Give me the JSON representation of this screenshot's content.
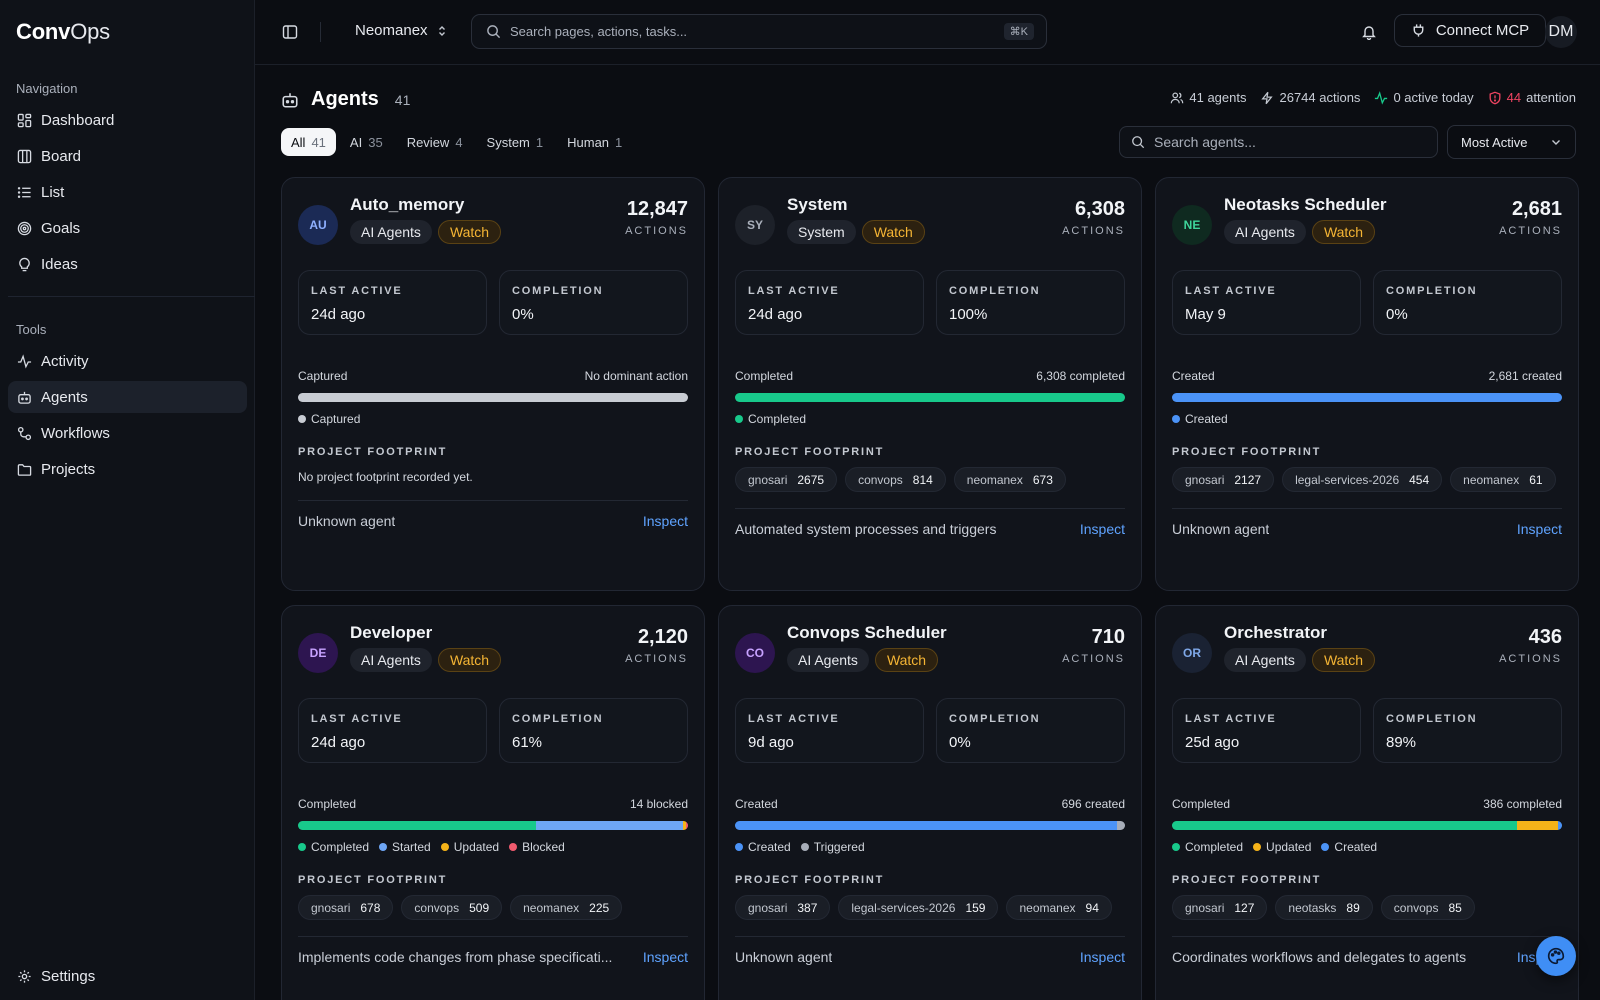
{
  "app": {
    "logo_bold": "Conv",
    "logo_rest": "Ops"
  },
  "sidebar": {
    "nav_label": "Navigation",
    "nav": [
      {
        "label": "Dashboard",
        "icon": "dashboard-icon"
      },
      {
        "label": "Board",
        "icon": "board-icon"
      },
      {
        "label": "List",
        "icon": "list-icon"
      },
      {
        "label": "Goals",
        "icon": "target-icon"
      },
      {
        "label": "Ideas",
        "icon": "lightbulb-icon"
      }
    ],
    "tools_label": "Tools",
    "tools": [
      {
        "label": "Activity",
        "icon": "activity-icon"
      },
      {
        "label": "Agents",
        "icon": "robot-icon",
        "active": true
      },
      {
        "label": "Workflows",
        "icon": "workflow-icon"
      },
      {
        "label": "Projects",
        "icon": "folder-icon"
      }
    ],
    "settings_label": "Settings"
  },
  "topbar": {
    "workspace": "Neomanex",
    "search_placeholder": "Search pages, actions, tasks...",
    "shortcut": "⌘K",
    "connect_label": "Connect MCP",
    "user_initials": "DM"
  },
  "page": {
    "title": "Agents",
    "count": "41",
    "stats": {
      "agents": "41 agents",
      "actions": "26744 actions",
      "active": "0 active today",
      "attention_num": "44",
      "attention_label": "attention"
    },
    "tabs": [
      {
        "label": "All",
        "count": "41",
        "active": true
      },
      {
        "label": "AI",
        "count": "35"
      },
      {
        "label": "Review",
        "count": "4"
      },
      {
        "label": "System",
        "count": "1"
      },
      {
        "label": "Human",
        "count": "1"
      }
    ],
    "agent_search_placeholder": "Search agents...",
    "sort": "Most Active"
  },
  "labels": {
    "actions": "ACTIONS",
    "last_active": "LAST ACTIVE",
    "completion": "COMPLETION",
    "footprint": "PROJECT FOOTPRINT",
    "inspect": "Inspect",
    "watch": "Watch"
  },
  "colors": {
    "completed": "#18c98b",
    "started": "#6ea6f5",
    "updated": "#f5b319",
    "blocked": "#f05a6e",
    "created": "#4b93f7",
    "triggered": "#a7adb8",
    "captured": "#c8ccd3"
  },
  "agents": [
    {
      "initials": "AU",
      "av_bg": "#1b2a55",
      "av_fg": "#8fb0ff",
      "name": "Auto_memory",
      "type": "AI Agents",
      "actions": "12,847",
      "last_active": "24d ago",
      "completion": "0%",
      "bar_left": "Captured",
      "bar_right": "No dominant action",
      "segments": [
        {
          "key": "captured",
          "label": "Captured",
          "pct": 100
        }
      ],
      "footprint": [],
      "footprint_empty": "No project footprint recorded yet.",
      "description": "Unknown agent"
    },
    {
      "initials": "SY",
      "av_bg": "#1d2129",
      "av_fg": "#aab0bb",
      "name": "System",
      "type": "System",
      "actions": "6,308",
      "last_active": "24d ago",
      "completion": "100%",
      "bar_left": "Completed",
      "bar_right": "6,308 completed",
      "segments": [
        {
          "key": "completed",
          "label": "Completed",
          "pct": 100
        }
      ],
      "footprint": [
        {
          "name": "gnosari",
          "n": "2675"
        },
        {
          "name": "convops",
          "n": "814"
        },
        {
          "name": "neomanex",
          "n": "673"
        }
      ],
      "description": "Automated system processes and triggers"
    },
    {
      "initials": "NE",
      "av_bg": "#0f2a20",
      "av_fg": "#3fd59b",
      "name": "Neotasks Scheduler",
      "type": "AI Agents",
      "actions": "2,681",
      "last_active": "May 9",
      "completion": "0%",
      "bar_left": "Created",
      "bar_right": "2,681 created",
      "segments": [
        {
          "key": "created",
          "label": "Created",
          "pct": 100
        }
      ],
      "footprint": [
        {
          "name": "gnosari",
          "n": "2127"
        },
        {
          "name": "legal-services-2026",
          "n": "454"
        },
        {
          "name": "neomanex",
          "n": "61"
        }
      ],
      "description": "Unknown agent"
    },
    {
      "initials": "DE",
      "av_bg": "#2d1550",
      "av_fg": "#c7a2ff",
      "name": "Developer",
      "type": "AI Agents",
      "actions": "2,120",
      "last_active": "24d ago",
      "completion": "61%",
      "bar_left": "Completed",
      "bar_right": "14 blocked",
      "segments": [
        {
          "key": "completed",
          "label": "Completed",
          "pct": 61
        },
        {
          "key": "started",
          "label": "Started",
          "pct": 37.6
        },
        {
          "key": "updated",
          "label": "Updated",
          "pct": 0.8
        },
        {
          "key": "blocked",
          "label": "Blocked",
          "pct": 0.6
        }
      ],
      "footprint": [
        {
          "name": "gnosari",
          "n": "678"
        },
        {
          "name": "convops",
          "n": "509"
        },
        {
          "name": "neomanex",
          "n": "225"
        }
      ],
      "description": "Implements code changes from phase specificati..."
    },
    {
      "initials": "CO",
      "av_bg": "#2d1550",
      "av_fg": "#c7a2ff",
      "name": "Convops Scheduler",
      "type": "AI Agents",
      "actions": "710",
      "last_active": "9d ago",
      "completion": "0%",
      "bar_left": "Created",
      "bar_right": "696 created",
      "segments": [
        {
          "key": "created",
          "label": "Created",
          "pct": 98
        },
        {
          "key": "triggered",
          "label": "Triggered",
          "pct": 2
        }
      ],
      "footprint": [
        {
          "name": "gnosari",
          "n": "387"
        },
        {
          "name": "legal-services-2026",
          "n": "159"
        },
        {
          "name": "neomanex",
          "n": "94"
        }
      ],
      "description": "Unknown agent"
    },
    {
      "initials": "OR",
      "av_bg": "#1a2233",
      "av_fg": "#7fa8e8",
      "name": "Orchestrator",
      "type": "AI Agents",
      "actions": "436",
      "last_active": "25d ago",
      "completion": "89%",
      "bar_left": "Completed",
      "bar_right": "386 completed",
      "segments": [
        {
          "key": "completed",
          "label": "Completed",
          "pct": 88.5
        },
        {
          "key": "updated",
          "label": "Updated",
          "pct": 10.5
        },
        {
          "key": "created",
          "label": "Created",
          "pct": 1
        }
      ],
      "footprint": [
        {
          "name": "gnosari",
          "n": "127"
        },
        {
          "name": "neotasks",
          "n": "89"
        },
        {
          "name": "convops",
          "n": "85"
        }
      ],
      "description": "Coordinates workflows and delegates to agents"
    }
  ]
}
